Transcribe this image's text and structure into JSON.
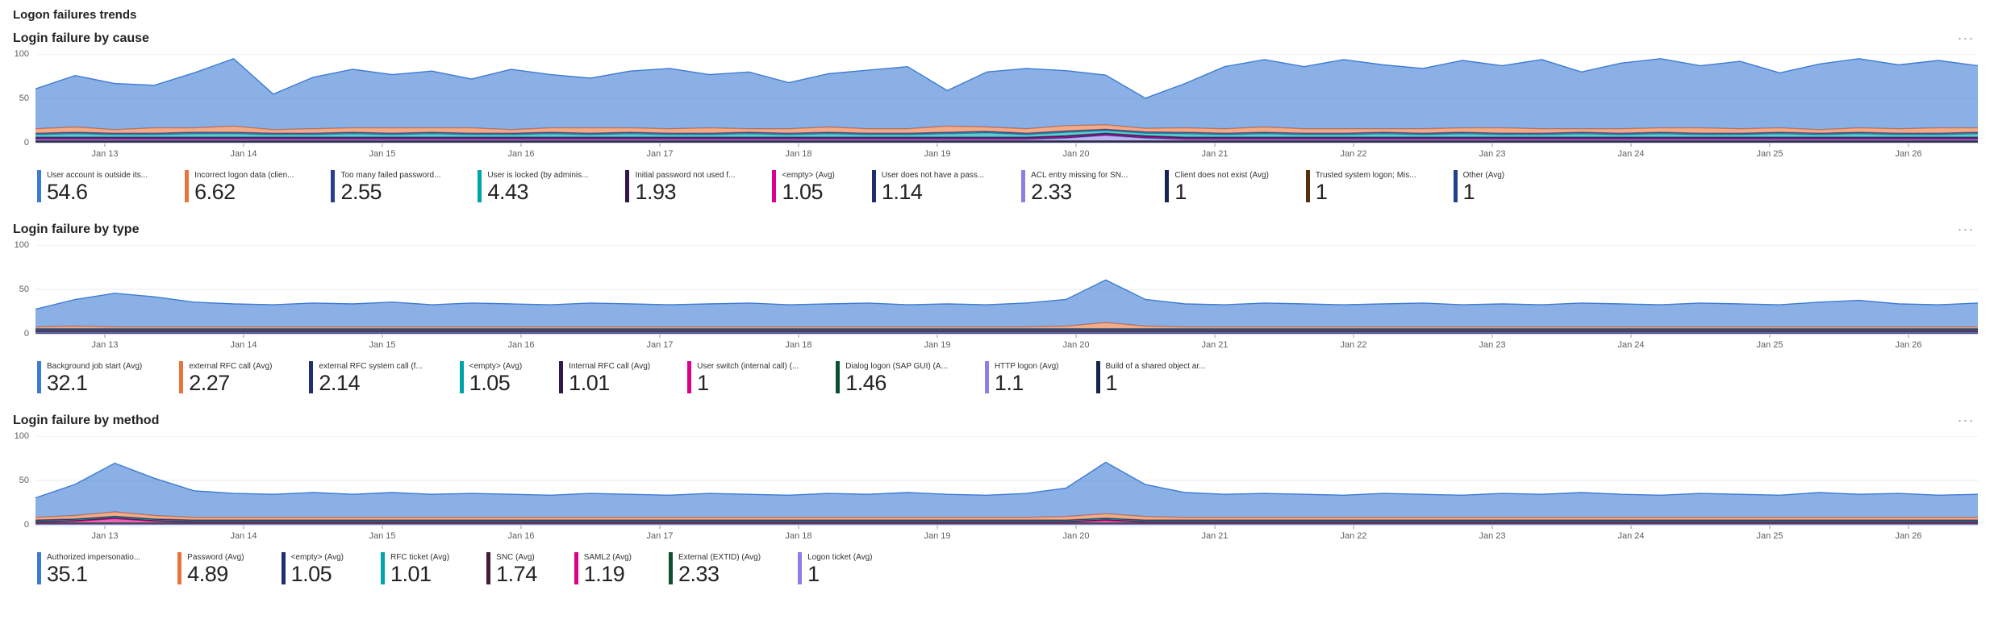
{
  "page": {
    "title": "Logon failures trends"
  },
  "icons": {
    "more_options": "..."
  },
  "axis": {
    "x_ticks": [
      "Jan 13",
      "Jan 14",
      "Jan 15",
      "Jan 16",
      "Jan 17",
      "Jan 18",
      "Jan 19",
      "Jan 20",
      "Jan 21",
      "Jan 22",
      "Jan 23",
      "Jan 24",
      "Jan 25",
      "Jan 26"
    ],
    "y_ticks": [
      100,
      50,
      0
    ],
    "ylim": [
      0,
      100
    ]
  },
  "chart_data": [
    {
      "type": "area",
      "stacked": true,
      "title": "Login failure by cause",
      "xlabel": "",
      "ylabel": "",
      "grid": true,
      "legend_position": "bottom",
      "series": [
        {
          "name": "User account is outside its...",
          "value_label": "54.6",
          "avg": 54.6,
          "color": "#3D7CD4",
          "values": [
            45,
            58,
            52,
            48,
            62,
            76,
            40,
            58,
            66,
            60,
            64,
            55,
            68,
            60,
            56,
            64,
            68,
            60,
            64,
            52,
            60,
            66,
            70,
            40,
            62,
            68,
            62,
            56,
            34,
            50,
            70,
            76,
            70,
            78,
            72,
            68,
            76,
            70,
            78,
            64,
            74,
            78,
            70,
            76,
            62,
            74,
            78,
            72,
            76,
            70
          ]
        },
        {
          "name": "Incorrect logon data (clien...",
          "value_label": "6.62",
          "avg": 6.62,
          "color": "#E8743C",
          "values": [
            5,
            6,
            4,
            6,
            5,
            7,
            4,
            5,
            5,
            6,
            5,
            6,
            4,
            5,
            6,
            5,
            5,
            6,
            4,
            5,
            6,
            5,
            5,
            7,
            5,
            5,
            6,
            5,
            4,
            5,
            5,
            6,
            5,
            5,
            4,
            5,
            5,
            6,
            5,
            4,
            5,
            5,
            6,
            5,
            5,
            4,
            5,
            5,
            6,
            5
          ]
        },
        {
          "name": "Too many failed password...",
          "value_label": "2.55",
          "avg": 2.55,
          "color": "#2C3C8F",
          "values": 1.5
        },
        {
          "name": "User is locked (by adminis...",
          "value_label": "4.43",
          "avg": 4.43,
          "color": "#00A5A8",
          "values": [
            3,
            4,
            3,
            3,
            4,
            4,
            3,
            3,
            4,
            3,
            4,
            3,
            3,
            4,
            3,
            4,
            3,
            3,
            4,
            3,
            4,
            3,
            3,
            4,
            5,
            3,
            4,
            3,
            3,
            4,
            3,
            4,
            3,
            3,
            4,
            3,
            4,
            3,
            3,
            4,
            3,
            4,
            3,
            3,
            4,
            3,
            4,
            3,
            3,
            4
          ]
        },
        {
          "name": "Initial password not used f...",
          "value_label": "1.93",
          "avg": 1.93,
          "color": "#32174D",
          "values": 1
        },
        {
          "name": "<empty> (Avg)",
          "value_label": "1.05",
          "avg": 1.05,
          "color": "#DC008C",
          "values": 0.8
        },
        {
          "name": "User does not have a pass...",
          "value_label": "1.14",
          "avg": 1.14,
          "color": "#1F2E6E",
          "values": 0.8
        },
        {
          "name": "ACL entry missing for SN...",
          "value_label": "2.33",
          "avg": 2.33,
          "color": "#8B7FE8",
          "values": [
            1.5,
            1.5,
            1.5,
            1.5,
            1.5,
            1.5,
            1.5,
            1.5,
            1.5,
            1.5,
            1.5,
            1.5,
            1.5,
            1.5,
            1.5,
            1.5,
            1.5,
            1.5,
            1.5,
            1.5,
            1.5,
            1.5,
            1.5,
            1.5,
            1.5,
            1.5,
            3,
            6,
            3,
            1.5,
            1.5,
            1.5,
            1.5,
            1.5,
            1.5,
            1.5,
            1.5,
            1.5,
            1.5,
            1.5,
            1.5,
            1.5,
            1.5,
            1.5,
            1.5,
            1.5,
            1.5,
            1.5,
            1.5,
            1.5
          ]
        },
        {
          "name": "Client does not exist (Avg)",
          "value_label": "1",
          "avg": 1,
          "color": "#16254F",
          "values": 0.7
        },
        {
          "name": "Trusted system logon; Mis...",
          "value_label": "1",
          "avg": 1,
          "color": "#54300C",
          "values": 0.7
        },
        {
          "name": "Other (Avg)",
          "value_label": "1",
          "avg": 1,
          "color": "#23408F",
          "values": 0.7
        }
      ]
    },
    {
      "type": "area",
      "stacked": true,
      "title": "Login failure by type",
      "xlabel": "",
      "ylabel": "",
      "grid": true,
      "legend_position": "bottom",
      "series": [
        {
          "name": "Background job start (Avg)",
          "value_label": "32.1",
          "avg": 32.1,
          "color": "#3D7CD4",
          "values": [
            20,
            30,
            38,
            34,
            28,
            26,
            25,
            27,
            26,
            28,
            25,
            27,
            26,
            25,
            27,
            26,
            25,
            26,
            27,
            25,
            26,
            27,
            25,
            26,
            25,
            27,
            30,
            48,
            30,
            26,
            25,
            27,
            26,
            25,
            26,
            27,
            25,
            26,
            25,
            27,
            26,
            25,
            27,
            26,
            25,
            28,
            30,
            26,
            25,
            27
          ]
        },
        {
          "name": "external RFC call (Avg)",
          "value_label": "2.27",
          "avg": 2.27,
          "color": "#E8743C",
          "values": [
            2,
            3,
            2,
            2,
            2,
            2,
            2,
            2,
            2,
            2,
            2,
            2,
            2,
            2,
            2,
            2,
            2,
            2,
            2,
            2,
            2,
            2,
            2,
            2,
            2,
            2,
            3,
            7,
            3,
            2,
            2,
            2,
            2,
            2,
            2,
            2,
            2,
            2,
            2,
            2,
            2,
            2,
            2,
            2,
            2,
            2,
            2,
            2,
            2,
            2
          ]
        },
        {
          "name": "external RFC system call (f...",
          "value_label": "2.14",
          "avg": 2.14,
          "color": "#1F2E6E",
          "values": 1.2
        },
        {
          "name": "<empty> (Avg)",
          "value_label": "1.05",
          "avg": 1.05,
          "color": "#00A5A8",
          "values": 0.7
        },
        {
          "name": "Internal RFC call (Avg)",
          "value_label": "1.01",
          "avg": 1.01,
          "color": "#32174D",
          "values": 0.7
        },
        {
          "name": "User switch (internal call) (...",
          "value_label": "1",
          "avg": 1,
          "color": "#DC008C",
          "values": 0.6
        },
        {
          "name": "Dialog logon (SAP GUI) (A...",
          "value_label": "1.46",
          "avg": 1.46,
          "color": "#0B5031",
          "values": 1
        },
        {
          "name": "HTTP logon (Avg)",
          "value_label": "1.1",
          "avg": 1.1,
          "color": "#8B7FE8",
          "values": 0.8
        },
        {
          "name": "Build of a shared object ar...",
          "value_label": "1",
          "avg": 1,
          "color": "#16254F",
          "values": 0.6
        }
      ]
    },
    {
      "type": "area",
      "stacked": true,
      "title": "Login failure by method",
      "xlabel": "",
      "ylabel": "",
      "grid": true,
      "legend_position": "bottom",
      "series": [
        {
          "name": "Authorized impersonatio...",
          "value_label": "35.1",
          "avg": 35.1,
          "color": "#3D7CD4",
          "values": [
            22,
            35,
            55,
            42,
            30,
            27,
            26,
            28,
            26,
            28,
            26,
            27,
            26,
            25,
            27,
            26,
            25,
            27,
            26,
            25,
            27,
            26,
            28,
            26,
            25,
            27,
            32,
            58,
            36,
            28,
            26,
            27,
            26,
            25,
            27,
            26,
            25,
            27,
            26,
            28,
            26,
            25,
            27,
            26,
            25,
            28,
            26,
            27,
            25,
            26
          ]
        },
        {
          "name": "Password (Avg)",
          "value_label": "4.89",
          "avg": 4.89,
          "color": "#E8743C",
          "values": [
            3,
            4,
            5,
            4,
            3,
            3,
            3,
            3,
            3,
            3,
            3,
            3,
            3,
            3,
            3,
            3,
            3,
            3,
            3,
            3,
            3,
            3,
            3,
            3,
            3,
            3,
            4,
            5,
            4,
            3,
            3,
            3,
            3,
            3,
            3,
            3,
            3,
            3,
            3,
            3,
            3,
            3,
            3,
            3,
            3,
            3,
            3,
            3,
            3,
            3
          ]
        },
        {
          "name": "<empty> (Avg)",
          "value_label": "1.05",
          "avg": 1.05,
          "color": "#1F2E6E",
          "values": 0.8
        },
        {
          "name": "RFC ticket (Avg)",
          "value_label": "1.01",
          "avg": 1.01,
          "color": "#00A5A8",
          "values": 0.7
        },
        {
          "name": "SNC (Avg)",
          "value_label": "1.74",
          "avg": 1.74,
          "color": "#451C31",
          "values": 1
        },
        {
          "name": "SAML2 (Avg)",
          "value_label": "1.19",
          "avg": 1.19,
          "color": "#DC008C",
          "values": [
            0.9,
            2,
            5,
            2,
            0.9,
            0.9,
            0.9,
            0.9,
            0.9,
            0.9,
            0.9,
            0.9,
            0.9,
            0.9,
            0.9,
            0.9,
            0.9,
            0.9,
            0.9,
            0.9,
            0.9,
            0.9,
            0.9,
            0.9,
            0.9,
            0.9,
            0.9,
            3,
            0.9,
            0.9,
            0.9,
            0.9,
            0.9,
            0.9,
            0.9,
            0.9,
            0.9,
            0.9,
            0.9,
            0.9,
            0.9,
            0.9,
            0.9,
            0.9,
            0.9,
            0.9,
            0.9,
            0.9,
            0.9,
            0.9
          ]
        },
        {
          "name": "External (EXTID) (Avg)",
          "value_label": "2.33",
          "avg": 2.33,
          "color": "#0B5031",
          "values": 1.3
        },
        {
          "name": "Logon ticket (Avg)",
          "value_label": "1",
          "avg": 1,
          "color": "#8B7FE8",
          "values": 0.7
        }
      ]
    }
  ]
}
